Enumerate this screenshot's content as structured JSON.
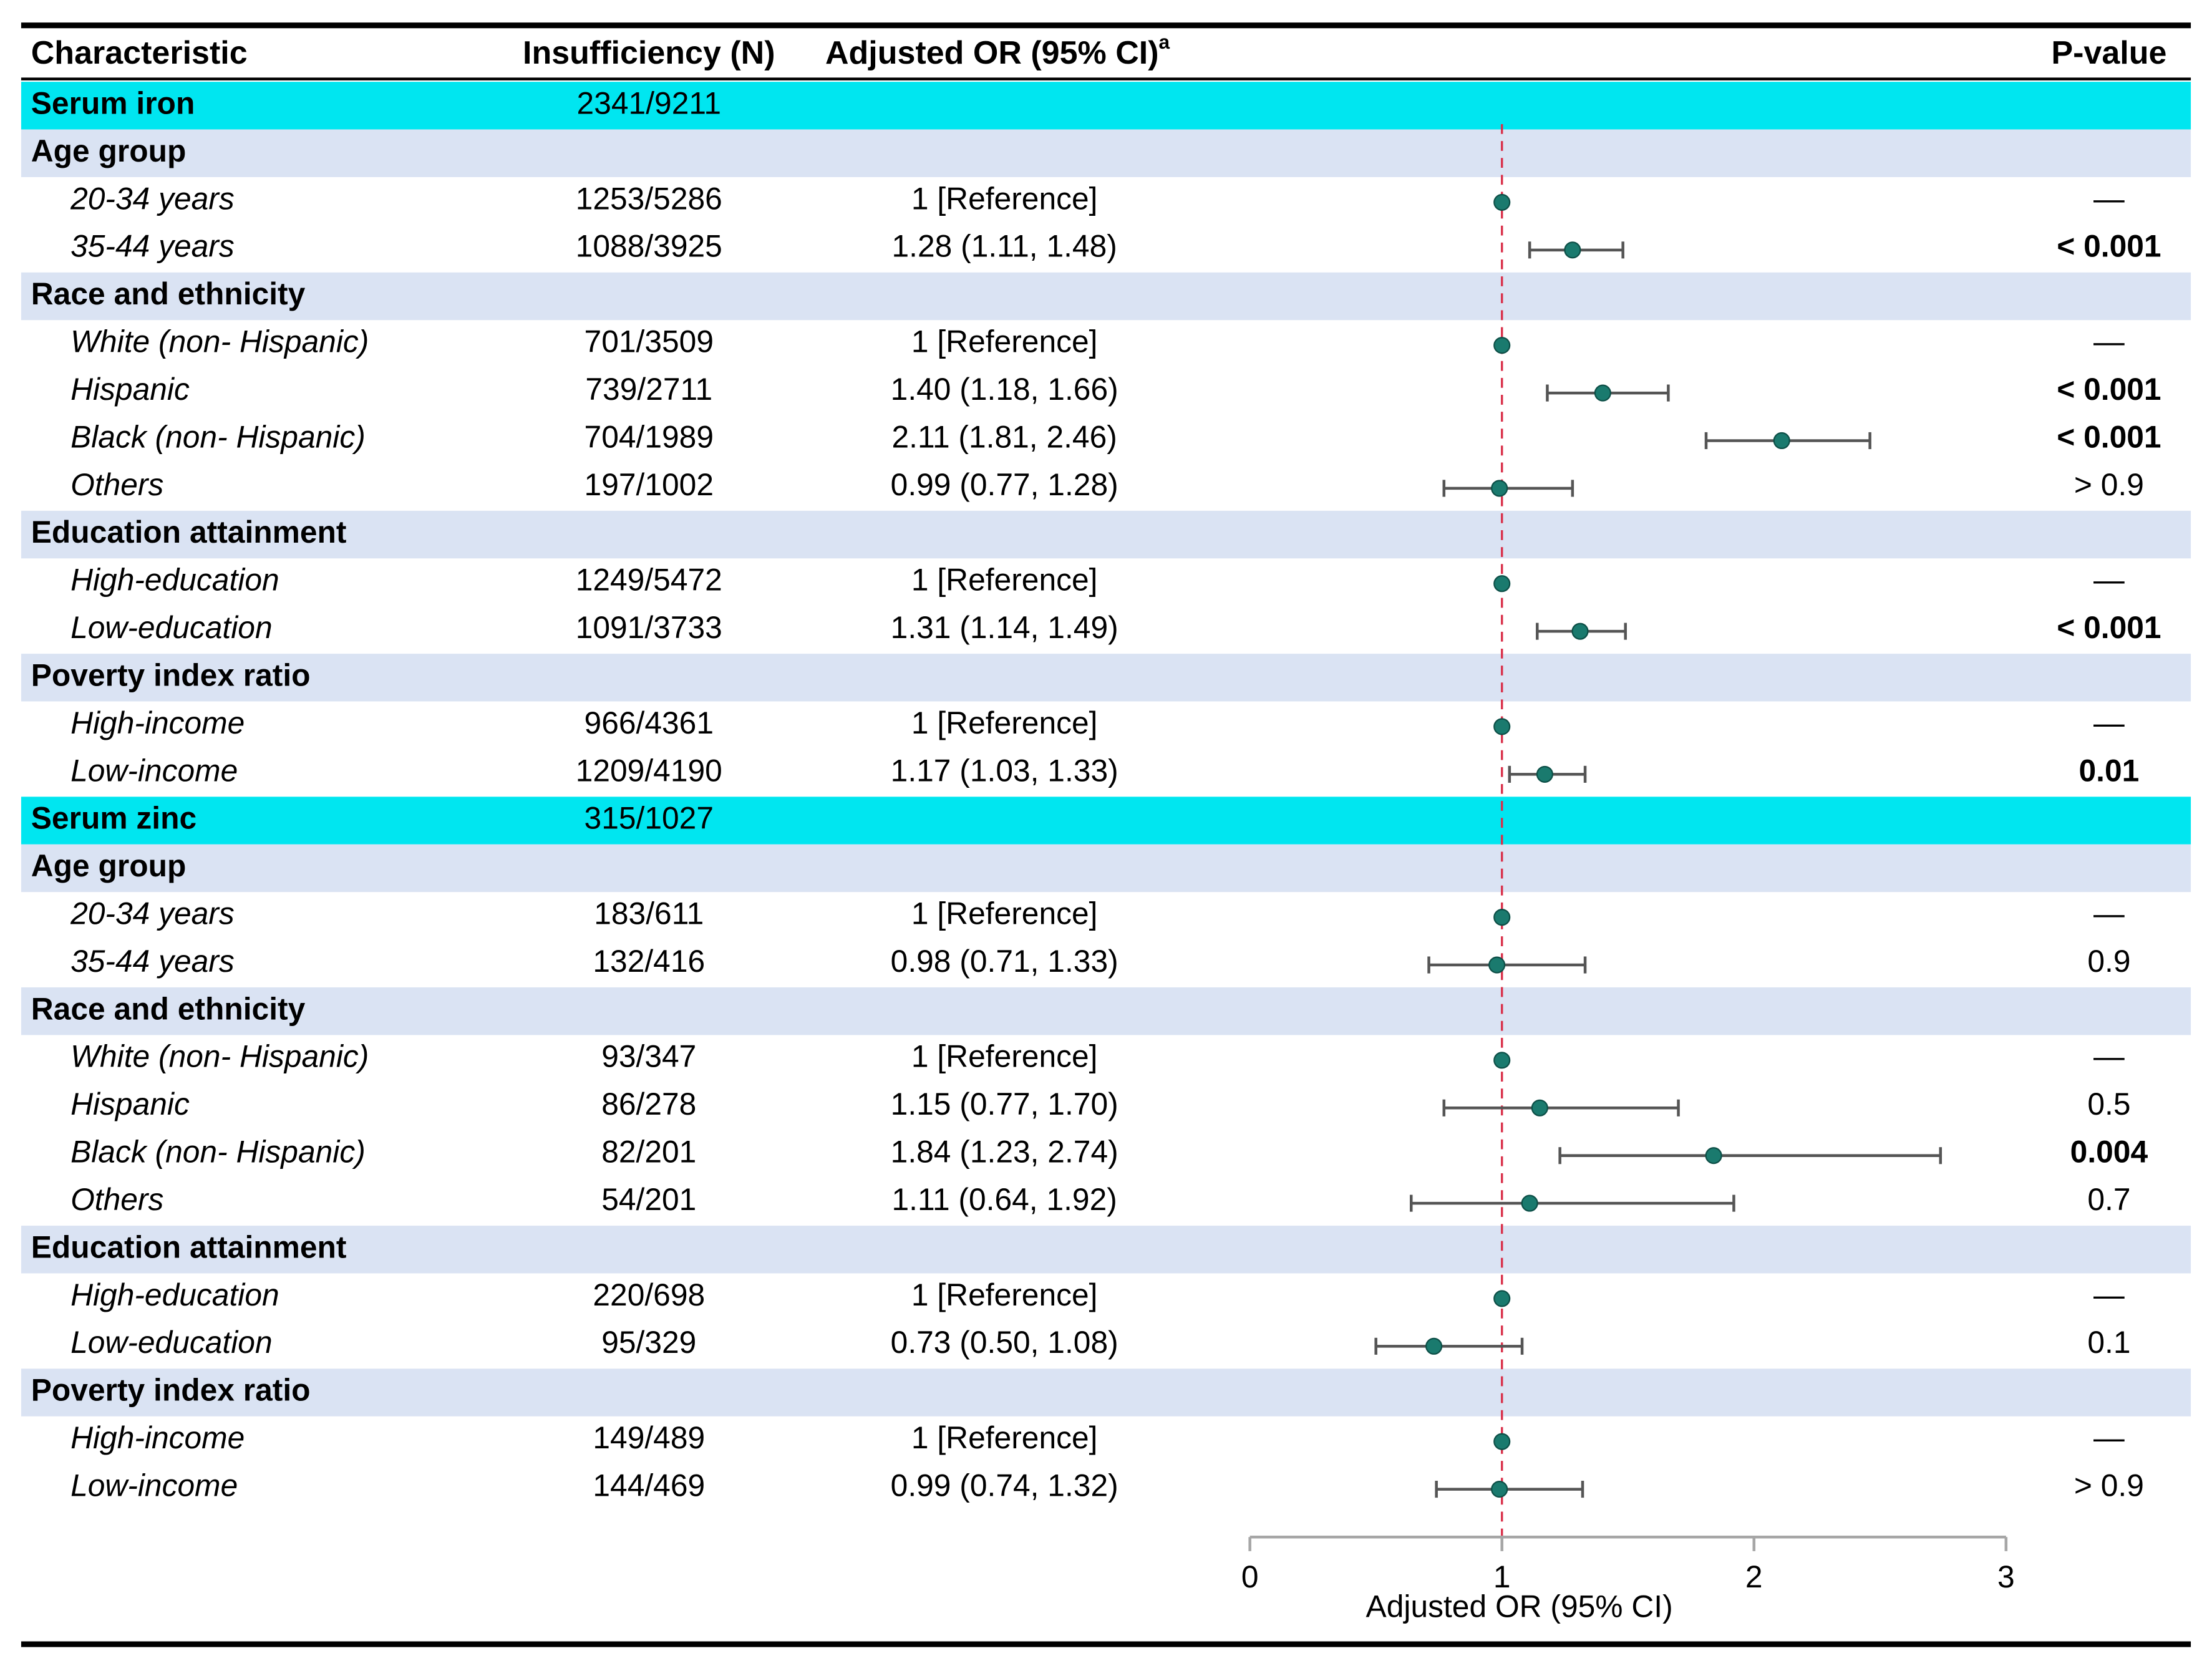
{
  "chart_data": {
    "type": "forest",
    "columns": [
      "Characteristic",
      "Insufficiency (N)",
      "Adjusted OR (95% CI)",
      "P-value"
    ],
    "column_note": "a",
    "xlabel": "Adjusted OR (95% CI)",
    "xlim": [
      0,
      3
    ],
    "xticks": [
      0,
      1,
      2,
      3
    ],
    "reference_line": 1,
    "marker_color": "#1a7a6e",
    "section_color": "#00e6f0",
    "group_color": "#dae3f3",
    "rows": [
      {
        "kind": "section",
        "label": "Serum iron",
        "n": "2341/9211"
      },
      {
        "kind": "group",
        "label": "Age group"
      },
      {
        "kind": "item",
        "label": "20-34 years",
        "n": "1253/5286",
        "ci_text": "1 [Reference]",
        "p": "—",
        "estimate": 1
      },
      {
        "kind": "item",
        "label": "35-44 years",
        "n": "1088/3925",
        "ci_text": "1.28 (1.11, 1.48)",
        "p": "< 0.001",
        "p_bold": true,
        "estimate": 1.28,
        "lower": 1.11,
        "upper": 1.48
      },
      {
        "kind": "group",
        "label": "Race and ethnicity"
      },
      {
        "kind": "item",
        "label": "White (non- Hispanic)",
        "n": "701/3509",
        "ci_text": "1 [Reference]",
        "p": "—",
        "estimate": 1
      },
      {
        "kind": "item",
        "label": "Hispanic",
        "n": "739/2711",
        "ci_text": "1.40 (1.18, 1.66)",
        "p": "< 0.001",
        "p_bold": true,
        "estimate": 1.4,
        "lower": 1.18,
        "upper": 1.66
      },
      {
        "kind": "item",
        "label": "Black (non- Hispanic)",
        "n": "704/1989",
        "ci_text": "2.11 (1.81, 2.46)",
        "p": "< 0.001",
        "p_bold": true,
        "estimate": 2.11,
        "lower": 1.81,
        "upper": 2.46
      },
      {
        "kind": "item",
        "label": "Others",
        "n": "197/1002",
        "ci_text": "0.99 (0.77, 1.28)",
        "p": "> 0.9",
        "estimate": 0.99,
        "lower": 0.77,
        "upper": 1.28
      },
      {
        "kind": "group",
        "label": "Education attainment"
      },
      {
        "kind": "item",
        "label": "High-education",
        "n": "1249/5472",
        "ci_text": "1 [Reference]",
        "p": "—",
        "estimate": 1
      },
      {
        "kind": "item",
        "label": "Low-education",
        "n": "1091/3733",
        "ci_text": "1.31 (1.14, 1.49)",
        "p": "< 0.001",
        "p_bold": true,
        "estimate": 1.31,
        "lower": 1.14,
        "upper": 1.49
      },
      {
        "kind": "group",
        "label": "Poverty index ratio"
      },
      {
        "kind": "item",
        "label": "High-income",
        "n": "966/4361",
        "ci_text": "1 [Reference]",
        "p": "—",
        "estimate": 1
      },
      {
        "kind": "item",
        "label": "Low-income",
        "n": "1209/4190",
        "ci_text": "1.17 (1.03, 1.33)",
        "p": "0.01",
        "p_bold": true,
        "estimate": 1.17,
        "lower": 1.03,
        "upper": 1.33
      },
      {
        "kind": "section",
        "label": "Serum zinc",
        "n": "315/1027"
      },
      {
        "kind": "group",
        "label": "Age group"
      },
      {
        "kind": "item",
        "label": "20-34 years",
        "n": "183/611",
        "ci_text": "1 [Reference]",
        "p": "—",
        "estimate": 1
      },
      {
        "kind": "item",
        "label": "35-44 years",
        "n": "132/416",
        "ci_text": "0.98 (0.71, 1.33)",
        "p": "0.9",
        "estimate": 0.98,
        "lower": 0.71,
        "upper": 1.33
      },
      {
        "kind": "group",
        "label": "Race and ethnicity"
      },
      {
        "kind": "item",
        "label": "White (non- Hispanic)",
        "n": "93/347",
        "ci_text": "1 [Reference]",
        "p": "—",
        "estimate": 1
      },
      {
        "kind": "item",
        "label": "Hispanic",
        "n": "86/278",
        "ci_text": "1.15 (0.77, 1.70)",
        "p": "0.5",
        "estimate": 1.15,
        "lower": 0.77,
        "upper": 1.7
      },
      {
        "kind": "item",
        "label": "Black (non- Hispanic)",
        "n": "82/201",
        "ci_text": "1.84 (1.23, 2.74)",
        "p": "0.004",
        "p_bold": true,
        "estimate": 1.84,
        "lower": 1.23,
        "upper": 2.74
      },
      {
        "kind": "item",
        "label": "Others",
        "n": "54/201",
        "ci_text": "1.11 (0.64, 1.92)",
        "p": "0.7",
        "estimate": 1.11,
        "lower": 0.64,
        "upper": 1.92
      },
      {
        "kind": "group",
        "label": "Education attainment"
      },
      {
        "kind": "item",
        "label": "High-education",
        "n": "220/698",
        "ci_text": "1 [Reference]",
        "p": "—",
        "estimate": 1
      },
      {
        "kind": "item",
        "label": "Low-education",
        "n": "95/329",
        "ci_text": "0.73 (0.50, 1.08)",
        "p": "0.1",
        "estimate": 0.73,
        "lower": 0.5,
        "upper": 1.08
      },
      {
        "kind": "group",
        "label": "Poverty index ratio"
      },
      {
        "kind": "item",
        "label": "High-income",
        "n": "149/489",
        "ci_text": "1 [Reference]",
        "p": "—",
        "estimate": 1
      },
      {
        "kind": "item",
        "label": "Low-income",
        "n": "144/469",
        "ci_text": "0.99 (0.74, 1.32)",
        "p": "> 0.9",
        "estimate": 0.99,
        "lower": 0.74,
        "upper": 1.32
      }
    ]
  }
}
